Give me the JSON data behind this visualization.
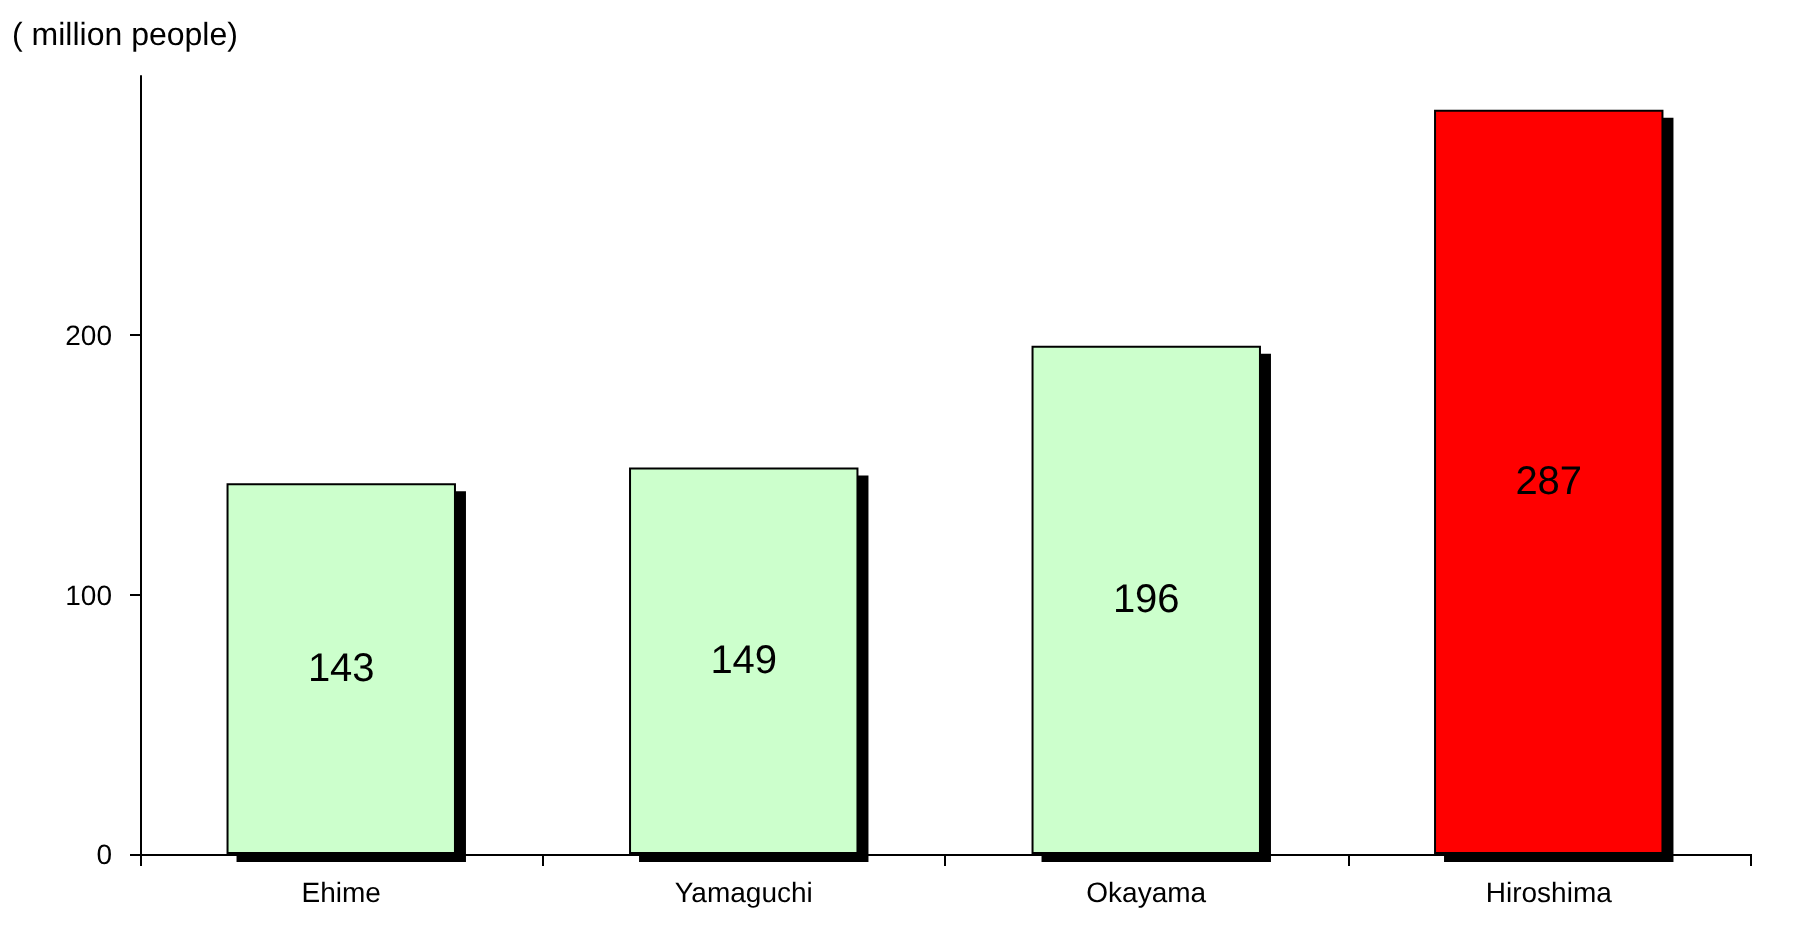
{
  "chart_data": {
    "type": "bar",
    "ylabel": "( million people)",
    "categories": [
      "Ehime",
      "Yamaguchi",
      "Okayama",
      "Hiroshima"
    ],
    "values": [
      143,
      149,
      196,
      287
    ],
    "colors": [
      "#ccffcc",
      "#ccffcc",
      "#ccffcc",
      "#ff0000"
    ],
    "ylim": [
      0,
      300
    ],
    "yticks": [
      0,
      100,
      200
    ],
    "data_labels": true
  }
}
